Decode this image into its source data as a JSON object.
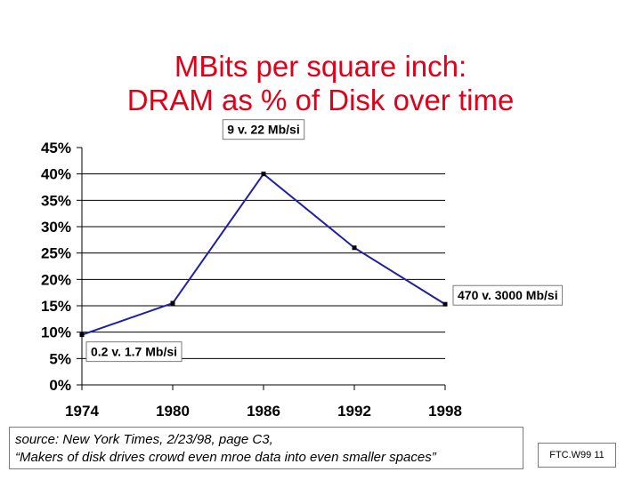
{
  "slide": {
    "title_line1": "MBits per square inch:",
    "title_line2": "DRAM as % of Disk over time",
    "source_line1": "source: New York Times, 2/23/98, page C3,",
    "source_line2": "“Makers of disk drives crowd even mroe data into even smaller spaces”",
    "footer": "FTC.W99 11"
  },
  "chart_data": {
    "type": "line",
    "x": [
      1974,
      1980,
      1986,
      1992,
      1998
    ],
    "categories": [
      "1974",
      "1980",
      "1986",
      "1992",
      "1998"
    ],
    "values": [
      9.5,
      15.5,
      40,
      26,
      15.3
    ],
    "ylim": [
      0,
      45
    ],
    "yticks": [
      "0%",
      "5%",
      "10%",
      "15%",
      "20%",
      "25%",
      "30%",
      "35%",
      "40%",
      "45%"
    ],
    "grid": true,
    "line_color": "#2020a0",
    "annotations": [
      {
        "text": "9  v. 22 Mb/si",
        "x": 1986,
        "y": 40
      },
      {
        "text": "470 v. 3000 Mb/si",
        "x": 1998,
        "y": 15.3
      },
      {
        "text": "0.2  v. 1.7 Mb/si",
        "x": 1974,
        "y": 9.5
      }
    ]
  }
}
